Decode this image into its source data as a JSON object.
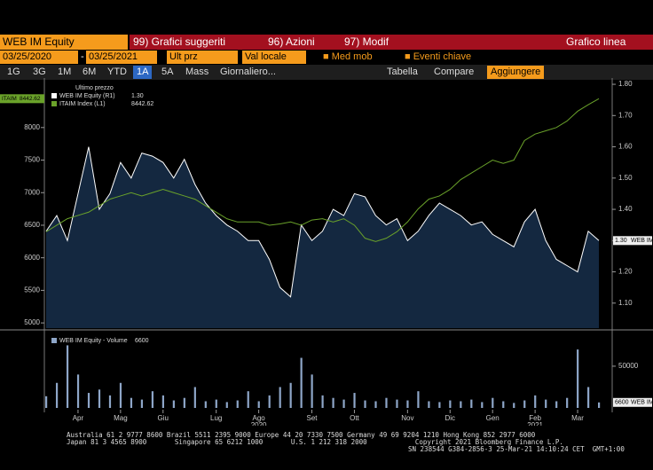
{
  "toolbar": {
    "row1": {
      "security": "WEB IM Equity",
      "menu": [
        "99) Grafici suggeriti",
        "96) Azioni",
        "97) Modif"
      ],
      "title": "Grafico linea"
    },
    "row2": {
      "start": "03/25/2020",
      "end": "03/25/2021",
      "field": "Ult prz",
      "currency": "Val locale",
      "options": [
        "Med mob",
        "Eventi chiave"
      ]
    },
    "row3": {
      "periods": [
        "1G",
        "3G",
        "1M",
        "6M",
        "YTD",
        "1A",
        "5A",
        "Mass"
      ],
      "active": 5,
      "freq": "Giornaliero...",
      "table": "Tabella",
      "compare": "Compare",
      "add": "Aggiungere"
    }
  },
  "chart_data": [
    {
      "type": "line",
      "legend_title": "Ultimo prezzo",
      "categories": [
        null,
        null,
        null,
        "Apr",
        null,
        null,
        null,
        "Mag",
        null,
        null,
        null,
        "Giu",
        null,
        null,
        null,
        null,
        "Lug",
        null,
        null,
        null,
        "Ago",
        null,
        null,
        null,
        null,
        "Set",
        null,
        null,
        null,
        "Ott",
        null,
        null,
        null,
        null,
        "Nov",
        null,
        null,
        null,
        "Dic",
        null,
        null,
        null,
        "Gen",
        null,
        null,
        null,
        "Feb",
        null,
        null,
        null,
        "Mar",
        null,
        null
      ],
      "category_years": [
        null,
        null,
        null,
        null,
        null,
        null,
        null,
        null,
        null,
        null,
        null,
        null,
        null,
        null,
        null,
        null,
        null,
        null,
        null,
        null,
        "2020",
        null,
        null,
        null,
        null,
        null,
        null,
        null,
        null,
        null,
        null,
        null,
        null,
        null,
        null,
        null,
        null,
        null,
        null,
        null,
        null,
        null,
        null,
        null,
        null,
        null,
        "2021",
        null,
        null,
        null,
        null,
        null,
        null
      ],
      "series": [
        {
          "name": "WEB IM Equity (R1)",
          "color": "#ffffff",
          "fill": "#142840",
          "axis": "y2",
          "tag": "WEB IM",
          "last_value_label": "1.30",
          "values": [
            1.33,
            1.38,
            1.3,
            1.45,
            1.6,
            1.4,
            1.45,
            1.55,
            1.5,
            1.58,
            1.57,
            1.55,
            1.5,
            1.56,
            1.48,
            1.42,
            1.38,
            1.35,
            1.33,
            1.3,
            1.3,
            1.24,
            1.15,
            1.12,
            1.35,
            1.3,
            1.33,
            1.4,
            1.38,
            1.45,
            1.44,
            1.38,
            1.35,
            1.37,
            1.3,
            1.33,
            1.38,
            1.42,
            1.4,
            1.38,
            1.35,
            1.36,
            1.32,
            1.3,
            1.28,
            1.36,
            1.4,
            1.3,
            1.24,
            1.22,
            1.2,
            1.33,
            1.3
          ]
        },
        {
          "name": "ITAIM Index (L1)",
          "color": "#6aa22a",
          "tag": "ITAIM",
          "values": [
            6400,
            6500,
            6600,
            6650,
            6700,
            6800,
            6900,
            6950,
            7000,
            6950,
            7000,
            7050,
            7000,
            6950,
            6900,
            6800,
            6700,
            6600,
            6550,
            6550,
            6550,
            6500,
            6520,
            6550,
            6500,
            6580,
            6600,
            6550,
            6600,
            6500,
            6300,
            6250,
            6300,
            6400,
            6550,
            6750,
            6900,
            6950,
            7050,
            7200,
            7300,
            7400,
            7500,
            7450,
            7500,
            7800,
            7900,
            7950,
            8000,
            8100,
            8250,
            8350,
            8442.62
          ]
        }
      ],
      "ylim": [
        4920,
        8760
      ],
      "yticks": [
        5000,
        5500,
        6000,
        6500,
        7000,
        7500,
        8000
      ],
      "y2lim": [
        1.02,
        1.82
      ],
      "y2ticks": [
        {
          "value": 1.1,
          "label": "1.10"
        },
        {
          "value": 1.2,
          "label": "1.20"
        },
        {
          "value": 1.3,
          "label": "1.30"
        },
        {
          "value": 1.4,
          "label": "1.40"
        },
        {
          "value": 1.5,
          "label": "1.50"
        },
        {
          "value": 1.6,
          "label": "1.60"
        },
        {
          "value": 1.7,
          "label": "1.70"
        },
        {
          "value": 1.8,
          "label": "1.80"
        }
      ]
    },
    {
      "type": "bar",
      "series": [
        {
          "name": "WEB IM Equity - Volume",
          "color": "#8ea6c8",
          "tag": "WEB IM",
          "values": [
            14000,
            30000,
            75000,
            40000,
            18000,
            22000,
            15000,
            30000,
            12000,
            10000,
            20000,
            15000,
            9000,
            12000,
            25000,
            8000,
            10000,
            7000,
            9000,
            20000,
            8000,
            15000,
            25000,
            30000,
            60000,
            40000,
            15000,
            12000,
            10000,
            18000,
            9000,
            8000,
            12000,
            10000,
            9000,
            20000,
            8000,
            7000,
            9000,
            8000,
            10000,
            7000,
            12000,
            8000,
            6000,
            9000,
            15000,
            10000,
            8000,
            12000,
            70000,
            25000,
            6600
          ]
        }
      ],
      "ylim": [
        0,
        85000
      ],
      "yticks": [
        50000
      ]
    }
  ],
  "footer": [
    "Australia 61 2 9777 8600 Brazil 5511 2395 9000 Europe 44 20 7330 7500 Germany 49 69 9204 1210 Hong Kong 852 2977 6000",
    "Japan 81 3 4565 8900       Singapore 65 6212 1000       U.S. 1 212 318 2000            Copyright 2021 Bloomberg Finance L.P.",
    "SN 238544 G384-2856-3 25-Mar-21 14:10:24 CET  GMT+1:00"
  ]
}
